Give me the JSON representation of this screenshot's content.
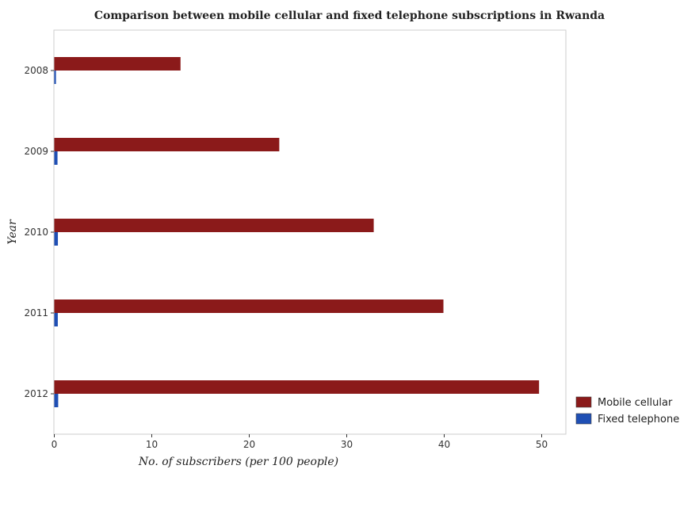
{
  "chart_data": {
    "type": "bar",
    "orientation": "horizontal",
    "title": "Comparison between mobile cellular and fixed telephone subscriptions in Rwanda",
    "xlabel": "No. of subscribers (per 100 people)",
    "ylabel": "Year",
    "categories": [
      "2008",
      "2009",
      "2010",
      "2011",
      "2012"
    ],
    "xlim": [
      0,
      52.5
    ],
    "xticks": [
      0,
      10,
      20,
      30,
      40,
      50
    ],
    "xtick_labels": [
      "0",
      "10",
      "20",
      "30",
      "40",
      "50"
    ],
    "grid": false,
    "legend_position": "bottom-right",
    "series": [
      {
        "name": "Mobile cellular",
        "color": "#8b1a1a",
        "values": [
          12.95,
          23.08,
          32.77,
          39.92,
          49.73
        ]
      },
      {
        "name": "Fixed telephone",
        "color": "#1f4fb4",
        "values": [
          0.17,
          0.33,
          0.37,
          0.36,
          0.4
        ]
      }
    ]
  }
}
